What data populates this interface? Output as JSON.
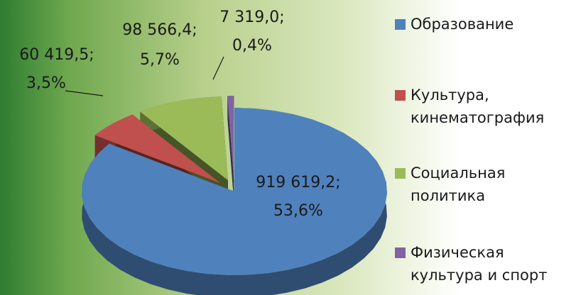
{
  "chart_data": {
    "type": "pie",
    "categories": [
      "Образование",
      "Культура, кинематография",
      "Социальная политика",
      "Физическая культура и спорт"
    ],
    "values": [
      919619.2,
      60419.5,
      98566.4,
      7319.0
    ],
    "value_labels": [
      "919 619,2;",
      "60 419,5;",
      "98 566,4;",
      "7 319,0;"
    ],
    "percentages": [
      53.6,
      3.5,
      5.7,
      0.4
    ],
    "percentage_labels": [
      "53,6%",
      "3,5%",
      "5,7%",
      "0,4%"
    ],
    "colors": [
      "#4f81bd",
      "#c0504d",
      "#9bbb59",
      "#8064a2"
    ],
    "legend": "right"
  }
}
